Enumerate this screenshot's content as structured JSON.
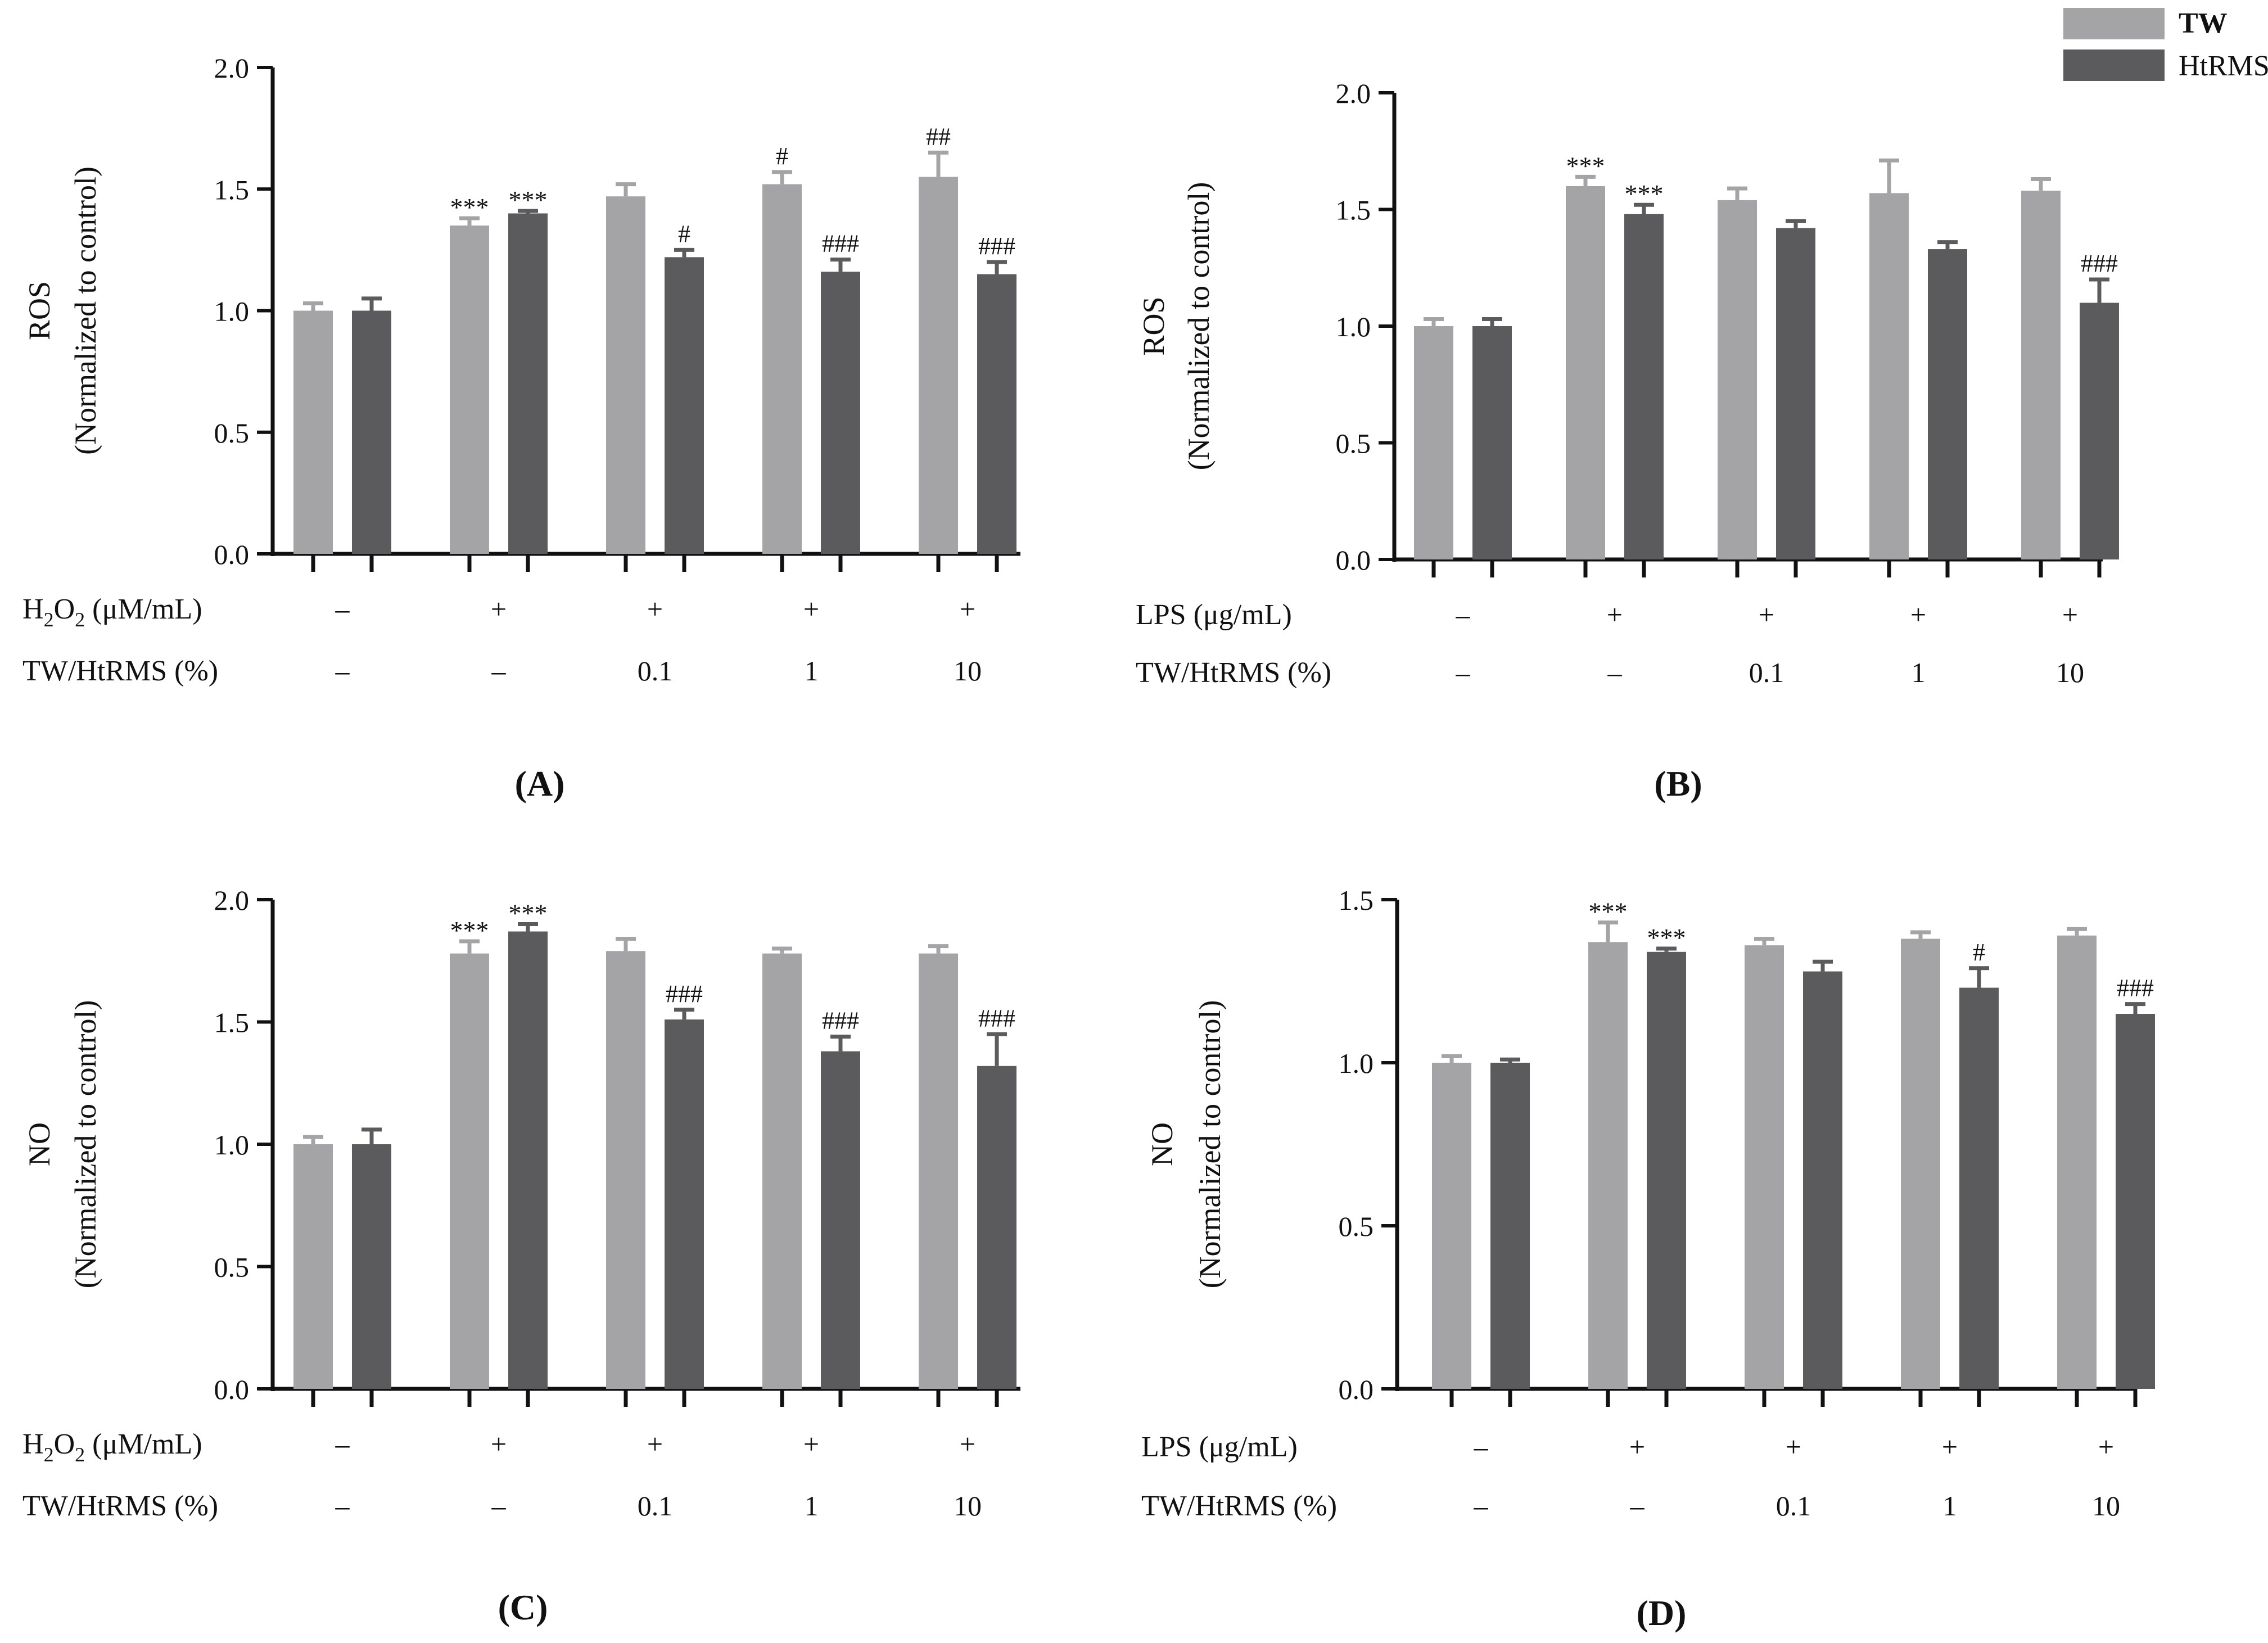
{
  "legend": {
    "position": "top-right",
    "items": [
      {
        "name": "TW",
        "color": "#a4a4a7"
      },
      {
        "name": "HtRMS",
        "color": "#5b5b5d"
      }
    ]
  },
  "chart_data": [
    {
      "panel": "(A)",
      "type": "bar",
      "ylabel_main": "ROS",
      "ylabel_sub": "(Normalized to control)",
      "ylim": [
        0,
        2.0
      ],
      "yticks": [
        0,
        0.5,
        1.0,
        1.5,
        2.0
      ],
      "ytick_labels": [
        "0.0",
        "0.5",
        "1.0",
        "1.5",
        "2.0"
      ],
      "stimulus": "H2O2",
      "row1_label": "H",
      "row1_sub1": "2",
      "row1_mid": "O",
      "row1_sub2": "2",
      "row1_unit": " (μM/mL)",
      "row2_label": "TW/HtRMS (%)",
      "groups": [
        {
          "row1": "–",
          "row2": "–"
        },
        {
          "row1": "+",
          "row2": "–"
        },
        {
          "row1": "+",
          "row2": "0.1"
        },
        {
          "row1": "+",
          "row2": "1"
        },
        {
          "row1": "+",
          "row2": "10"
        }
      ],
      "series": [
        {
          "name": "TW",
          "values": [
            1.0,
            1.35,
            1.47,
            1.52,
            1.55
          ],
          "errors": [
            0.03,
            0.03,
            0.05,
            0.05,
            0.1
          ],
          "marks": [
            "",
            "***",
            "",
            "#",
            "##"
          ]
        },
        {
          "name": "HtRMS",
          "values": [
            1.0,
            1.4,
            1.22,
            1.16,
            1.15
          ],
          "errors": [
            0.05,
            0.01,
            0.03,
            0.05,
            0.05
          ],
          "marks": [
            "",
            "***",
            "#",
            "###",
            "###"
          ]
        }
      ]
    },
    {
      "panel": "(B)",
      "type": "bar",
      "ylabel_main": "ROS",
      "ylabel_sub": "(Normalized to control)",
      "ylim": [
        0,
        2.0
      ],
      "yticks": [
        0,
        0.5,
        1.0,
        1.5,
        2.0
      ],
      "ytick_labels": [
        "0.0",
        "0.5",
        "1.0",
        "1.5",
        "2.0"
      ],
      "stimulus": "LPS",
      "row1_label": "LPS (μg/mL)",
      "row2_label": "TW/HtRMS (%)",
      "groups": [
        {
          "row1": "–",
          "row2": "–"
        },
        {
          "row1": "+",
          "row2": "–"
        },
        {
          "row1": "+",
          "row2": "0.1"
        },
        {
          "row1": "+",
          "row2": "1"
        },
        {
          "row1": "+",
          "row2": "10"
        }
      ],
      "series": [
        {
          "name": "TW",
          "values": [
            1.0,
            1.6,
            1.54,
            1.57,
            1.58
          ],
          "errors": [
            0.03,
            0.04,
            0.05,
            0.14,
            0.05
          ],
          "marks": [
            "",
            "***",
            "",
            "",
            ""
          ]
        },
        {
          "name": "HtRMS",
          "values": [
            1.0,
            1.48,
            1.42,
            1.33,
            1.1
          ],
          "errors": [
            0.03,
            0.04,
            0.03,
            0.03,
            0.1
          ],
          "marks": [
            "",
            "***",
            "",
            "",
            "###"
          ]
        }
      ]
    },
    {
      "panel": "(C)",
      "type": "bar",
      "ylabel_main": "NO",
      "ylabel_sub": "(Normalized to control)",
      "ylim": [
        0,
        2.0
      ],
      "yticks": [
        0,
        0.5,
        1.0,
        1.5,
        2.0
      ],
      "ytick_labels": [
        "0.0",
        "0.5",
        "1.0",
        "1.5",
        "2.0"
      ],
      "stimulus": "H2O2",
      "row1_label": "H",
      "row1_sub1": "2",
      "row1_mid": "O",
      "row1_sub2": "2",
      "row1_unit": " (μM/mL)",
      "row2_label": "TW/HtRMS (%)",
      "groups": [
        {
          "row1": "–",
          "row2": "–"
        },
        {
          "row1": "+",
          "row2": "–"
        },
        {
          "row1": "+",
          "row2": "0.1"
        },
        {
          "row1": "+",
          "row2": "1"
        },
        {
          "row1": "+",
          "row2": "10"
        }
      ],
      "series": [
        {
          "name": "TW",
          "values": [
            1.0,
            1.78,
            1.79,
            1.78,
            1.78
          ],
          "errors": [
            0.03,
            0.05,
            0.05,
            0.02,
            0.03
          ],
          "marks": [
            "",
            "***",
            "",
            "",
            ""
          ]
        },
        {
          "name": "HtRMS",
          "values": [
            1.0,
            1.87,
            1.51,
            1.38,
            1.32
          ],
          "errors": [
            0.06,
            0.03,
            0.04,
            0.06,
            0.13
          ],
          "marks": [
            "",
            "***",
            "###",
            "###",
            "###"
          ]
        }
      ]
    },
    {
      "panel": "(D)",
      "type": "bar",
      "ylabel_main": "NO",
      "ylabel_sub": "(Normalized to control)",
      "ylim": [
        0,
        1.5
      ],
      "yticks": [
        0,
        0.5,
        1.0,
        1.5
      ],
      "ytick_labels": [
        "0.0",
        "0.5",
        "1.0",
        "1.5"
      ],
      "stimulus": "LPS",
      "row1_label": "LPS (μg/mL)",
      "row2_label": "TW/HtRMS (%)",
      "groups": [
        {
          "row1": "–",
          "row2": "–"
        },
        {
          "row1": "+",
          "row2": "–"
        },
        {
          "row1": "+",
          "row2": "0.1"
        },
        {
          "row1": "+",
          "row2": "1"
        },
        {
          "row1": "+",
          "row2": "10"
        }
      ],
      "series": [
        {
          "name": "TW",
          "values": [
            1.0,
            1.37,
            1.36,
            1.38,
            1.39
          ],
          "errors": [
            0.02,
            0.06,
            0.02,
            0.02,
            0.02
          ],
          "marks": [
            "",
            "***",
            "",
            "",
            ""
          ]
        },
        {
          "name": "HtRMS",
          "values": [
            1.0,
            1.34,
            1.28,
            1.23,
            1.15
          ],
          "errors": [
            0.01,
            0.01,
            0.03,
            0.06,
            0.03
          ],
          "marks": [
            "",
            "***",
            "",
            "#",
            "###"
          ]
        }
      ]
    }
  ]
}
